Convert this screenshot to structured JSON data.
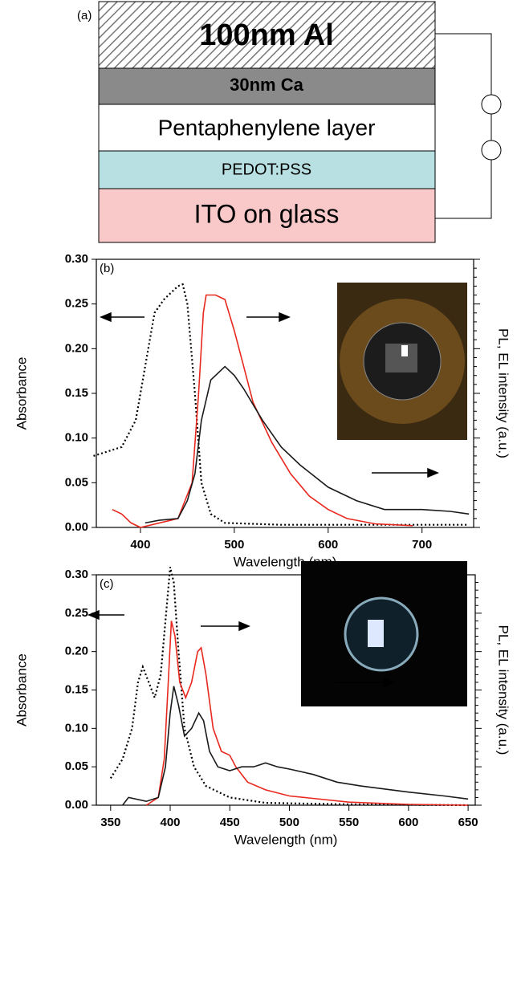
{
  "diagram": {
    "label": "(a)",
    "layers": [
      "100nm Al",
      "30nm Ca",
      "Pentaphenylene layer",
      "PEDOT:PSS",
      "ITO on glass"
    ]
  },
  "chart_data": [
    {
      "type": "line",
      "label": "(b)",
      "xlabel": "Wavelength (nm)",
      "ylabel": "Absorbance",
      "y2label": "PL, EL intensity (a.u.)",
      "xlim": [
        353,
        755
      ],
      "ylim": [
        0,
        0.3
      ],
      "xticks": [
        400,
        500,
        600,
        700
      ],
      "yticks": [
        {
          "value": 0,
          "label": "0.00"
        },
        0.05,
        {
          "value": 0.1,
          "label": "0.10"
        },
        0.15,
        {
          "value": 0.2,
          "label": "0.20"
        },
        0.25,
        {
          "value": 0.3,
          "label": "0.30"
        }
      ],
      "series": [
        {
          "color": "#000000",
          "style": "dotted",
          "x": [
            350,
            380,
            395,
            405,
            415,
            425,
            430,
            440,
            445,
            450,
            458,
            465,
            475,
            490,
            550,
            750
          ],
          "values": [
            0.08,
            0.09,
            0.12,
            0.18,
            0.24,
            0.255,
            0.26,
            0.27,
            0.272,
            0.25,
            0.15,
            0.05,
            0.015,
            0.005,
            0.003,
            0.003
          ]
        },
        {
          "color": "#e8281e",
          "style": "solid",
          "x": [
            370,
            380,
            390,
            400,
            440,
            455,
            462,
            467,
            470,
            480,
            490,
            500,
            510,
            520,
            540,
            560,
            580,
            600,
            620,
            650,
            690
          ],
          "values": [
            0.02,
            0.015,
            0.005,
            0,
            0.01,
            0.05,
            0.15,
            0.24,
            0.26,
            0.26,
            0.255,
            0.22,
            0.18,
            0.14,
            0.095,
            0.06,
            0.035,
            0.02,
            0.01,
            0.004,
            0.002
          ]
        },
        {
          "color": "#1a1a1a",
          "style": "solid",
          "x": [
            405,
            420,
            440,
            450,
            458,
            465,
            475,
            490,
            500,
            510,
            530,
            550,
            570,
            600,
            630,
            660,
            700,
            730,
            750
          ],
          "values": [
            0.005,
            0.008,
            0.01,
            0.03,
            0.06,
            0.12,
            0.165,
            0.18,
            0.17,
            0.155,
            0.12,
            0.09,
            0.07,
            0.045,
            0.03,
            0.02,
            0.02,
            0.018,
            0.015
          ]
        }
      ]
    },
    {
      "type": "line",
      "label": "(c)",
      "xlabel": "Wavelength (nm)",
      "ylabel": "Absorbance",
      "y2label": "PL, EL intensity (a.u.)",
      "xlim": [
        338,
        656
      ],
      "ylim": [
        0,
        0.3
      ],
      "xticks": [
        350,
        400,
        450,
        500,
        550,
        600,
        650
      ],
      "yticks": [
        {
          "value": 0,
          "label": "0.00"
        },
        0.05,
        {
          "value": 0.1,
          "label": "0.10"
        },
        0.15,
        {
          "value": 0.2,
          "label": "0.20"
        },
        0.25,
        {
          "value": 0.3,
          "label": "0.30"
        }
      ],
      "series": [
        {
          "color": "#000000",
          "style": "dotted",
          "x": [
            350,
            360,
            368,
            373,
            377,
            382,
            387,
            392,
            396,
            400,
            403,
            407,
            412,
            420,
            430,
            450,
            480,
            550,
            650
          ],
          "values": [
            0.035,
            0.06,
            0.1,
            0.16,
            0.18,
            0.16,
            0.14,
            0.17,
            0.24,
            0.31,
            0.29,
            0.2,
            0.1,
            0.05,
            0.025,
            0.01,
            0.003,
            0.001,
            0
          ]
        },
        {
          "color": "#e8281e",
          "style": "solid",
          "x": [
            380,
            390,
            395,
            398,
            401,
            404,
            408,
            413,
            418,
            423,
            426,
            430,
            436,
            443,
            450,
            455,
            465,
            480,
            500,
            550,
            600,
            650
          ],
          "values": [
            0,
            0.01,
            0.06,
            0.15,
            0.24,
            0.22,
            0.16,
            0.14,
            0.16,
            0.2,
            0.205,
            0.17,
            0.1,
            0.07,
            0.065,
            0.05,
            0.03,
            0.02,
            0.012,
            0.004,
            0.001,
            0
          ]
        },
        {
          "color": "#1a1a1a",
          "style": "solid",
          "x": [
            360,
            365,
            380,
            390,
            396,
            400,
            403,
            407,
            412,
            418,
            424,
            428,
            433,
            440,
            450,
            460,
            470,
            480,
            490,
            500,
            520,
            540,
            560,
            600,
            630,
            650
          ],
          "values": [
            0,
            0.01,
            0.005,
            0.01,
            0.05,
            0.12,
            0.155,
            0.13,
            0.09,
            0.1,
            0.12,
            0.11,
            0.07,
            0.05,
            0.045,
            0.05,
            0.05,
            0.055,
            0.05,
            0.047,
            0.04,
            0.03,
            0.025,
            0.017,
            0.012,
            0.008
          ]
        }
      ]
    }
  ]
}
